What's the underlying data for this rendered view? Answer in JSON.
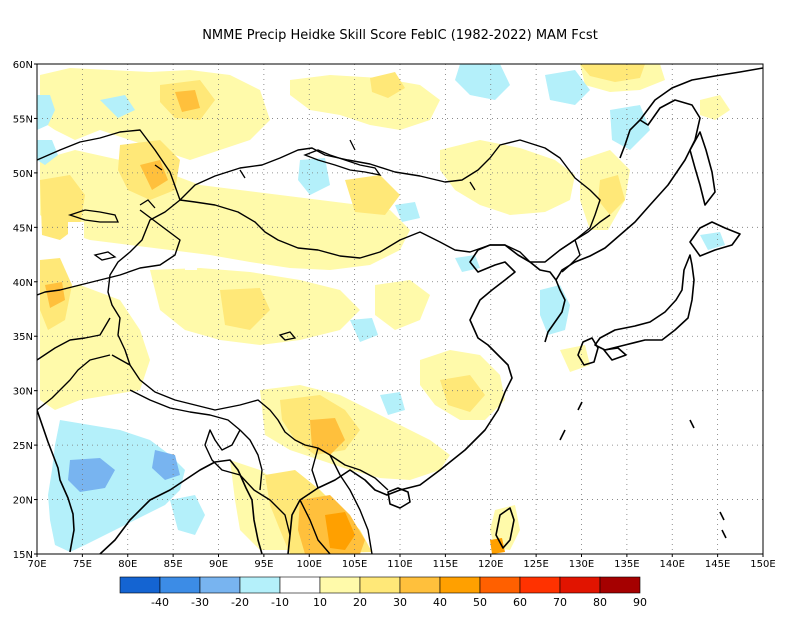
{
  "title": "NMME Precip Heidke Skill Score FebIC (1982-2022) MAM Fcst",
  "map": {
    "lon_range": [
      70,
      150
    ],
    "lat_range": [
      15,
      60
    ],
    "x_ticks": [
      "70E",
      "75E",
      "80E",
      "85E",
      "90E",
      "95E",
      "100E",
      "105E",
      "110E",
      "115E",
      "120E",
      "125E",
      "130E",
      "135E",
      "140E",
      "145E",
      "150E"
    ],
    "y_ticks": [
      "15N",
      "20N",
      "25N",
      "30N",
      "35N",
      "40N",
      "45N",
      "50N",
      "55N",
      "60N"
    ],
    "gridlines": "dotted"
  },
  "colorbar": {
    "colors": [
      "#1464d2",
      "#3c8ce6",
      "#78b4f0",
      "#b4f0fa",
      "#ffffff",
      "#fffaaa",
      "#ffe878",
      "#ffc03c",
      "#ffa000",
      "#ff6000",
      "#ff3200",
      "#e11400",
      "#a50000"
    ],
    "labels": [
      "-40",
      "-30",
      "-20",
      "-10",
      "10",
      "20",
      "30",
      "40",
      "50",
      "60",
      "70",
      "80",
      "90"
    ]
  },
  "fill_colors": {
    "light_blue": "#b4f0fa",
    "mid_blue": "#78b4f0",
    "pale_yellow": "#fffaaa",
    "yellow": "#ffe878",
    "orange": "#ffc03c",
    "dark_orange": "#ffa000"
  }
}
